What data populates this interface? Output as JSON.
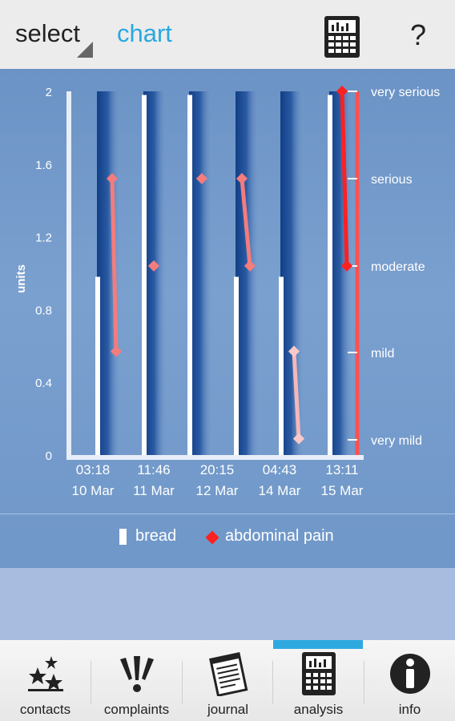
{
  "toolbar": {
    "select_label": "select",
    "chart_label": "chart",
    "calculator_icon": "calculator-icon",
    "help_label": "?"
  },
  "chart_data": {
    "type": "bar",
    "x_ticks": [
      {
        "time": "03:18",
        "date": "10 Mar"
      },
      {
        "time": "11:46",
        "date": "11 Mar"
      },
      {
        "time": "20:15",
        "date": "12 Mar"
      },
      {
        "time": "04:43",
        "date": "14 Mar"
      },
      {
        "time": "13:11",
        "date": "15 Mar"
      }
    ],
    "ylabel": "units",
    "ylim": [
      0,
      2
    ],
    "y_ticks": [
      "0",
      "0.4",
      "0.8",
      "1.2",
      "1.6",
      "2"
    ],
    "right_axis_labels": [
      "very mild",
      "mild",
      "moderate",
      "serious",
      "very serious"
    ],
    "series": [
      {
        "name": "bread",
        "kind": "bar",
        "color": "#ffffff",
        "values": [
          0.98,
          1.98,
          1.98,
          0.98,
          0.98,
          1.98
        ]
      },
      {
        "name": "abdominal pain",
        "kind": "line",
        "color": "#ff2020",
        "groups": [
          [
            1.52,
            0.57
          ],
          [
            1.04
          ],
          [
            1.52
          ],
          [
            1.52,
            1.04
          ],
          [
            0.57,
            0.09
          ],
          [
            2.0,
            1.04
          ]
        ]
      }
    ],
    "grid": false,
    "legend_position": "bottom"
  },
  "legend": {
    "bread": "bread",
    "pain": "abdominal pain"
  },
  "nav": [
    {
      "label": "contacts",
      "icon": "stars-icon"
    },
    {
      "label": "complaints",
      "icon": "exclamation-burst-icon"
    },
    {
      "label": "journal",
      "icon": "notepad-icon"
    },
    {
      "label": "analysis",
      "icon": "calculator-icon",
      "active": true
    },
    {
      "label": "info",
      "icon": "info-icon"
    }
  ],
  "colors": {
    "accent": "#29a8df",
    "panel": "#7aa0cf",
    "pain": "#ff2020",
    "bread": "#ffffff"
  }
}
